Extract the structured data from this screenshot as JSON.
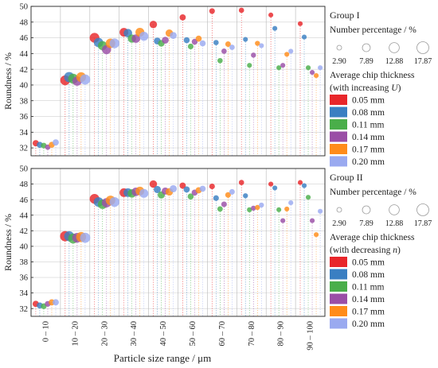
{
  "chart_data": {
    "type": "scatter",
    "ylabel": "Roundness / %",
    "xlabel": "Particle size range / μm",
    "categories": [
      "0 – 10",
      "10 – 20",
      "20 – 30",
      "30 – 40",
      "40 – 50",
      "50 – 60",
      "60 – 70",
      "70 – 80",
      "80 – 90",
      "90 – 100"
    ],
    "ylim": [
      31,
      50
    ],
    "yticks": [
      32,
      34,
      36,
      38,
      40,
      42,
      44,
      46,
      48,
      50
    ],
    "thickness_colors": [
      "#e8262a",
      "#3a7fc2",
      "#4aae4a",
      "#9a4ea6",
      "#ff8c1a",
      "#9aaaf0"
    ],
    "bubble_sizes": [
      2.9,
      7.89,
      12.88,
      17.87
    ],
    "legend_size_labels": [
      "2.90",
      "7.89",
      "12.88",
      "17.87"
    ],
    "panels": [
      {
        "group_title": "Group I",
        "size_legend_title": "Number percentage / %",
        "thickness_title_line1": "Average chip thickness",
        "thickness_title_line2_pre": "(with increasing ",
        "thickness_title_var": "U",
        "thickness_title_line2_post": ")",
        "thickness_labels": [
          "0.05 mm",
          "0.08 mm",
          "0.11 mm",
          "0.14 mm",
          "0.17 mm",
          "0.20 mm"
        ],
        "data": [
          [
            [
              32.6,
              5.0
            ],
            [
              32.4,
              4.6
            ],
            [
              32.3,
              4.0
            ],
            [
              32.1,
              3.7
            ],
            [
              32.4,
              4.5
            ],
            [
              32.7,
              5.0
            ]
          ],
          [
            [
              40.6,
              12.0
            ],
            [
              41.0,
              13.0
            ],
            [
              40.8,
              12.5
            ],
            [
              40.5,
              11.0
            ],
            [
              41.0,
              12.0
            ],
            [
              40.7,
              13.0
            ]
          ],
          [
            [
              46.0,
              12.0
            ],
            [
              45.4,
              11.0
            ],
            [
              45.0,
              10.5
            ],
            [
              44.5,
              10.5
            ],
            [
              45.3,
              11.5
            ],
            [
              45.3,
              12.0
            ]
          ],
          [
            [
              46.7,
              9.5
            ],
            [
              46.6,
              9.0
            ],
            [
              45.9,
              8.5
            ],
            [
              45.9,
              9.0
            ],
            [
              46.7,
              10.0
            ],
            [
              46.2,
              10.0
            ]
          ],
          [
            [
              47.7,
              7.0
            ],
            [
              45.6,
              6.0
            ],
            [
              45.3,
              5.5
            ],
            [
              45.7,
              6.0
            ],
            [
              46.6,
              7.0
            ],
            [
              46.3,
              6.0
            ]
          ],
          [
            [
              48.6,
              4.8
            ],
            [
              45.7,
              4.5
            ],
            [
              44.9,
              4.0
            ],
            [
              45.5,
              4.4
            ],
            [
              45.9,
              4.6
            ],
            [
              45.3,
              4.6
            ]
          ],
          [
            [
              49.4,
              4.0
            ],
            [
              45.4,
              3.5
            ],
            [
              43.1,
              3.5
            ],
            [
              44.3,
              3.6
            ],
            [
              45.2,
              3.8
            ],
            [
              44.8,
              3.6
            ]
          ],
          [
            [
              49.5,
              3.5
            ],
            [
              45.8,
              3.0
            ],
            [
              42.5,
              3.0
            ],
            [
              43.8,
              3.2
            ],
            [
              45.3,
              3.2
            ],
            [
              45.0,
              3.0
            ]
          ],
          [
            [
              48.9,
              3.0
            ],
            [
              47.2,
              3.0
            ],
            [
              42.2,
              3.0
            ],
            [
              42.5,
              3.0
            ],
            [
              43.9,
              3.0
            ],
            [
              44.3,
              3.0
            ]
          ],
          [
            [
              47.8,
              3.0
            ],
            [
              46.1,
              3.0
            ],
            [
              42.2,
              3.0
            ],
            [
              41.6,
              3.0
            ],
            [
              41.2,
              3.0
            ],
            [
              42.2,
              3.0
            ]
          ]
        ]
      },
      {
        "group_title": "Group II",
        "size_legend_title": "Number percentage / %",
        "thickness_title_line1": "Average chip thickness",
        "thickness_title_line2_pre": "(with decreasing ",
        "thickness_title_var": "n",
        "thickness_title_line2_post": ")",
        "thickness_labels": [
          "0.05 mm",
          "0.08 mm",
          "0.11 mm",
          "0.14 mm",
          "0.17 mm",
          "0.20 mm"
        ],
        "data": [
          [
            [
              32.6,
              5.0
            ],
            [
              32.4,
              4.6
            ],
            [
              32.3,
              4.2
            ],
            [
              32.6,
              4.2
            ],
            [
              32.8,
              4.8
            ],
            [
              32.8,
              5.0
            ]
          ],
          [
            [
              41.3,
              13.0
            ],
            [
              41.3,
              12.5
            ],
            [
              41.0,
              12.5
            ],
            [
              41.1,
              12.0
            ],
            [
              41.2,
              12.5
            ],
            [
              41.1,
              13.0
            ]
          ],
          [
            [
              46.1,
              12.0
            ],
            [
              45.7,
              11.5
            ],
            [
              45.4,
              11.0
            ],
            [
              45.6,
              11.0
            ],
            [
              45.9,
              11.5
            ],
            [
              45.7,
              12.0
            ]
          ],
          [
            [
              46.9,
              9.5
            ],
            [
              46.9,
              9.5
            ],
            [
              46.8,
              9.0
            ],
            [
              47.0,
              9.0
            ],
            [
              47.1,
              9.5
            ],
            [
              46.8,
              10.0
            ]
          ],
          [
            [
              48.0,
              7.0
            ],
            [
              47.3,
              6.5
            ],
            [
              46.6,
              6.5
            ],
            [
              47.1,
              6.5
            ],
            [
              47.0,
              7.0
            ],
            [
              47.4,
              6.5
            ]
          ],
          [
            [
              47.8,
              5.0
            ],
            [
              47.3,
              4.8
            ],
            [
              46.4,
              4.6
            ],
            [
              46.9,
              4.6
            ],
            [
              47.2,
              4.8
            ],
            [
              47.4,
              4.6
            ]
          ],
          [
            [
              47.7,
              4.0
            ],
            [
              46.2,
              4.0
            ],
            [
              44.8,
              3.8
            ],
            [
              45.4,
              4.0
            ],
            [
              46.6,
              4.0
            ],
            [
              47.0,
              3.8
            ]
          ],
          [
            [
              48.2,
              3.5
            ],
            [
              46.5,
              3.2
            ],
            [
              44.7,
              3.2
            ],
            [
              44.9,
              3.2
            ],
            [
              45.0,
              3.2
            ],
            [
              45.3,
              3.2
            ]
          ],
          [
            [
              48.0,
              3.0
            ],
            [
              47.5,
              3.0
            ],
            [
              44.7,
              3.0
            ],
            [
              43.3,
              3.0
            ],
            [
              44.8,
              3.0
            ],
            [
              45.6,
              3.0
            ]
          ],
          [
            [
              48.2,
              3.0
            ],
            [
              47.8,
              3.0
            ],
            [
              46.3,
              3.0
            ],
            [
              43.3,
              3.0
            ],
            [
              41.5,
              3.0
            ],
            [
              44.5,
              3.0
            ]
          ]
        ]
      }
    ]
  }
}
